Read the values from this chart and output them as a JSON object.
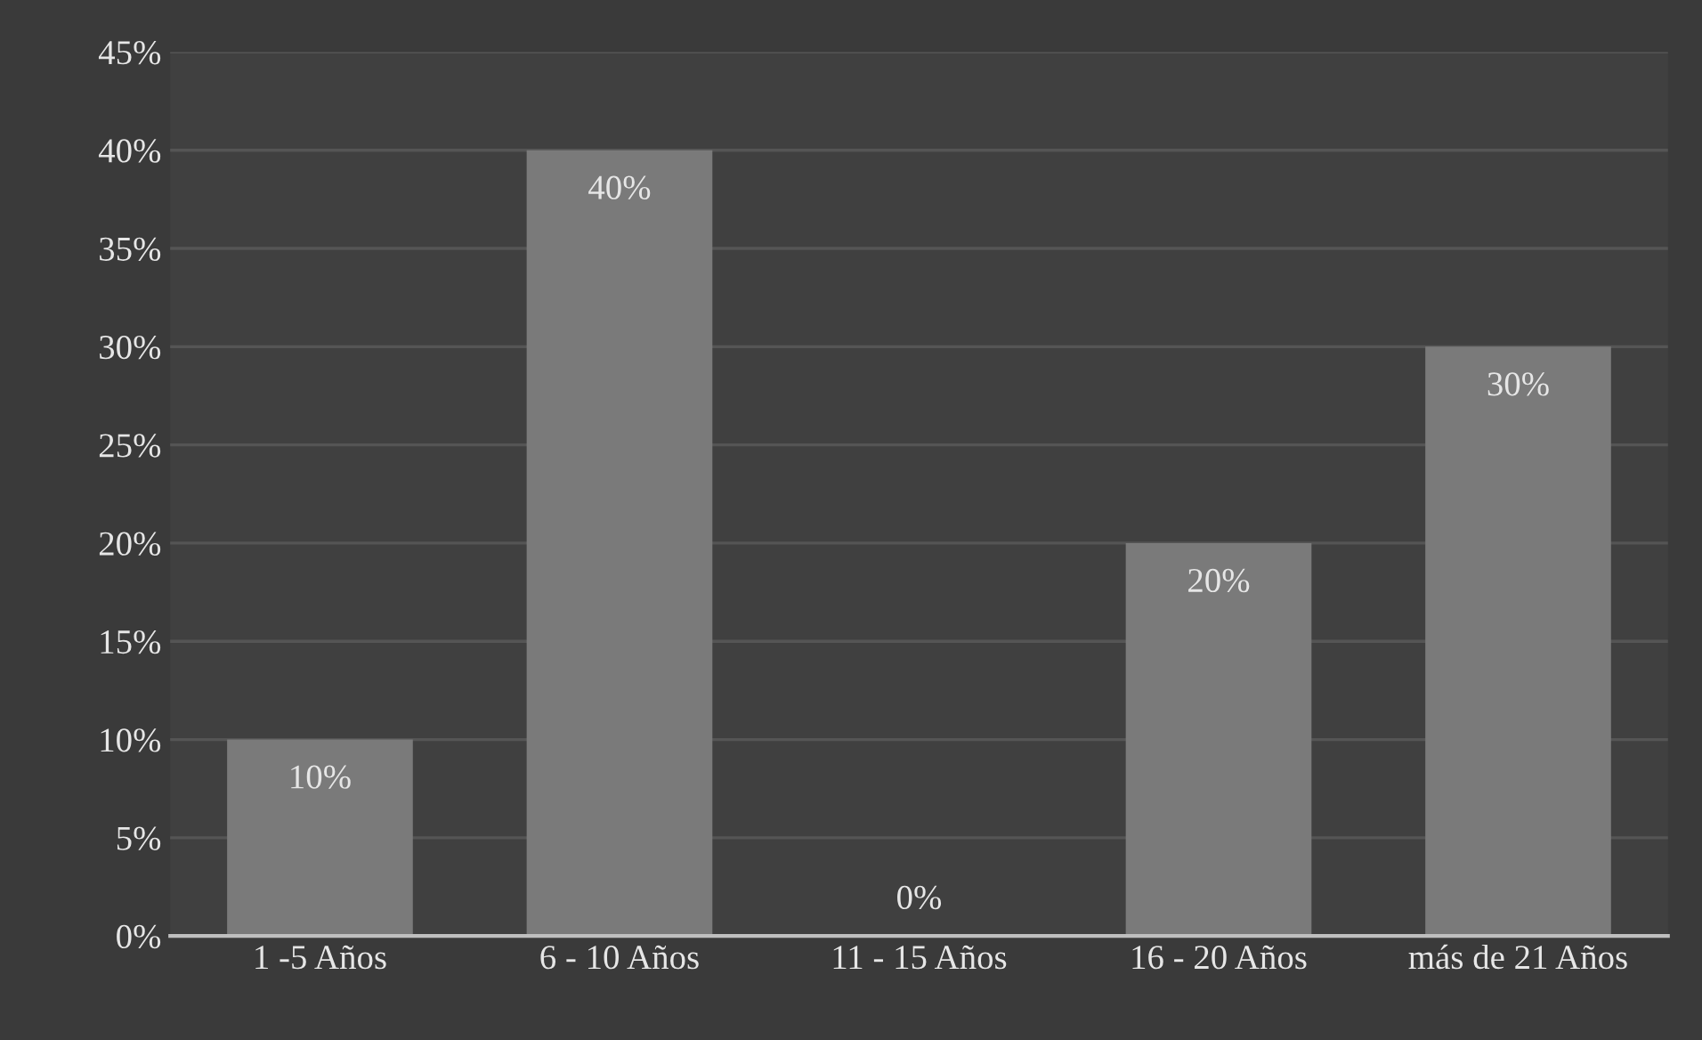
{
  "chart_data": {
    "type": "bar",
    "categories": [
      "1 -5 Años",
      "6 - 10 Años",
      "11 - 15 Años",
      "16 - 20 Años",
      "más de 21 Años"
    ],
    "values": [
      10,
      40,
      0,
      20,
      30
    ],
    "value_labels": [
      "10%",
      "40%",
      "0%",
      "20%",
      "30%"
    ],
    "color": "#7a7a7a",
    "ylim": [
      0,
      45
    ],
    "yticks": [
      {
        "value": 0,
        "label": "0%"
      },
      {
        "value": 5,
        "label": "5%"
      },
      {
        "value": 10,
        "label": "10%"
      },
      {
        "value": 15,
        "label": "15%"
      },
      {
        "value": 20,
        "label": "20%"
      },
      {
        "value": 25,
        "label": "25%"
      },
      {
        "value": 30,
        "label": "30%"
      },
      {
        "value": 35,
        "label": "35%"
      },
      {
        "value": 40,
        "label": "40%"
      },
      {
        "value": 45,
        "label": "45%"
      }
    ],
    "grid": "y"
  }
}
